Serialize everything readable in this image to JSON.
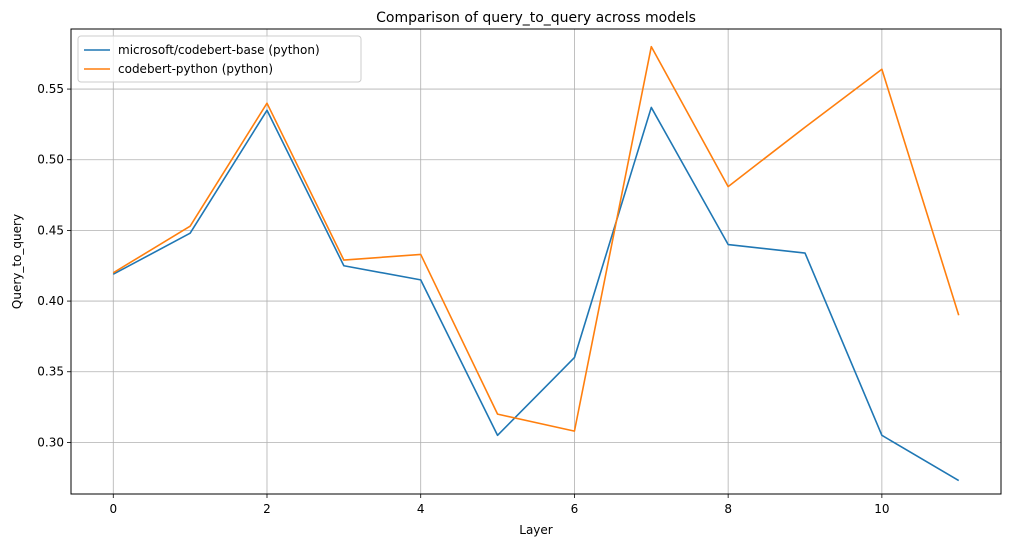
{
  "chart_data": {
    "type": "line",
    "title": "Comparison of query_to_query across models",
    "xlabel": "Layer",
    "ylabel": "Query_to_query",
    "x": [
      0,
      1,
      2,
      3,
      4,
      5,
      6,
      7,
      8,
      9,
      10,
      11
    ],
    "xlim": [
      -0.55,
      11.55
    ],
    "ylim": [
      0.2635,
      0.5925
    ],
    "xticks": [
      0,
      2,
      4,
      6,
      8,
      10
    ],
    "xtick_labels": [
      "0",
      "2",
      "4",
      "6",
      "8",
      "10"
    ],
    "yticks": [
      0.3,
      0.35,
      0.4,
      0.45,
      0.5,
      0.55
    ],
    "ytick_labels": [
      "0.30",
      "0.35",
      "0.40",
      "0.45",
      "0.50",
      "0.55"
    ],
    "grid": true,
    "legend_position": "top-left",
    "series": [
      {
        "name": "microsoft/codebert-base (python)",
        "color": "#1f77b4",
        "values": [
          0.419,
          0.448,
          0.535,
          0.425,
          0.415,
          0.305,
          0.36,
          0.537,
          0.44,
          0.434,
          0.305,
          0.273
        ]
      },
      {
        "name": "codebert-python (python)",
        "color": "#ff7f0e",
        "values": [
          0.42,
          0.453,
          0.54,
          0.429,
          0.433,
          0.32,
          0.308,
          0.58,
          0.481,
          0.523,
          0.564,
          0.39
        ]
      }
    ]
  }
}
